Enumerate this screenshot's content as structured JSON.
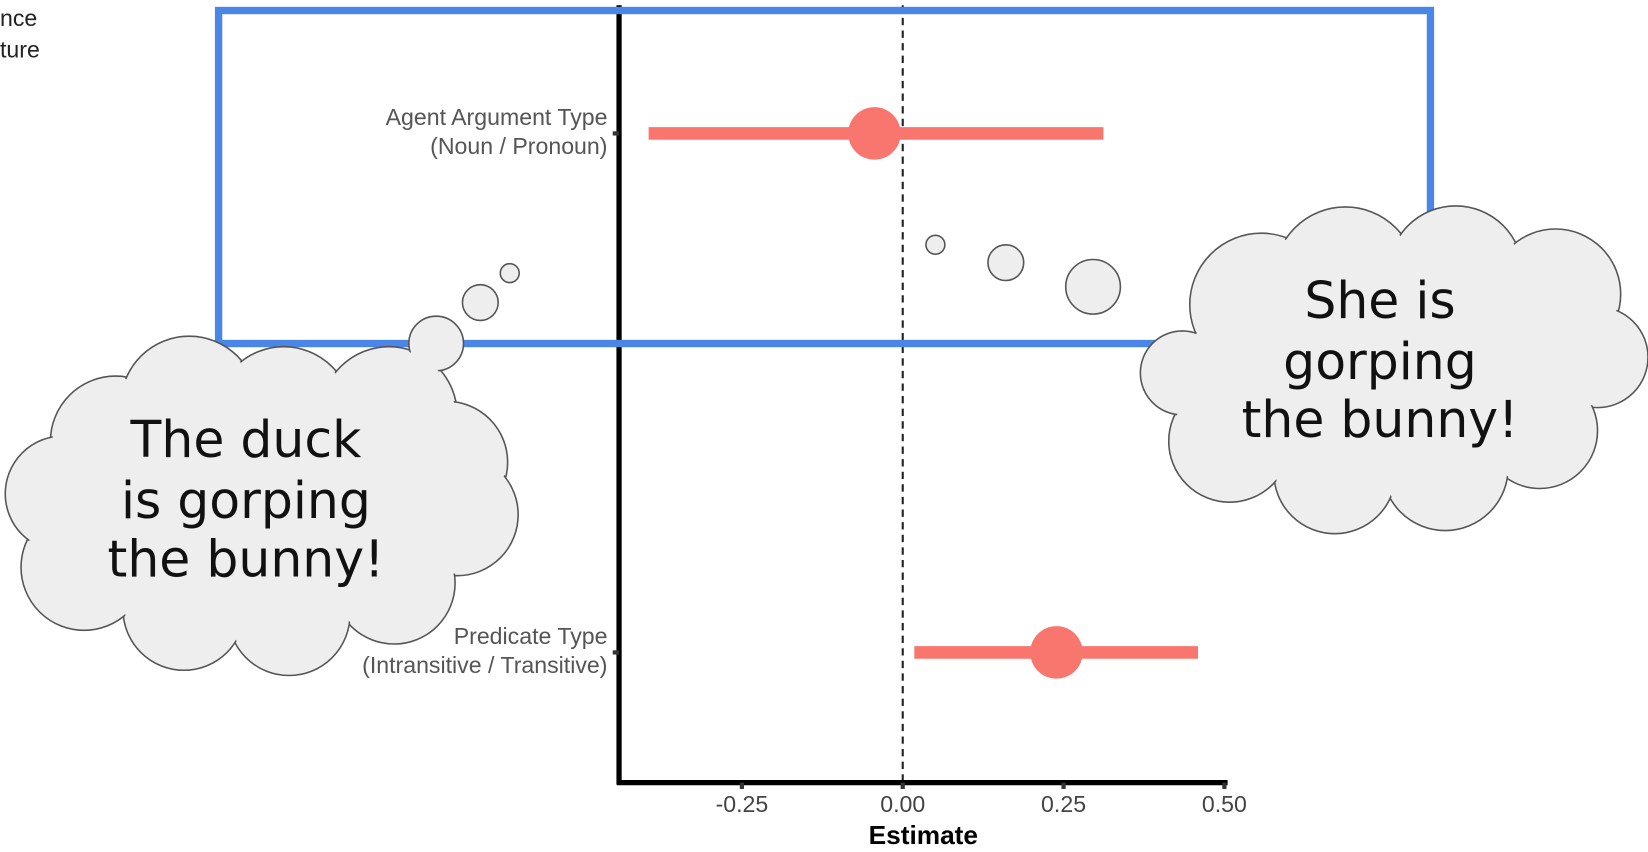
{
  "chart_data": {
    "type": "errorbar",
    "categories": [
      [
        "Agent Argument Type",
        "(Noun / Pronoun)"
      ],
      [
        "Predicate Type",
        "(Intransitive / Transitive)"
      ]
    ],
    "values": [
      -0.044,
      0.239
    ],
    "lower": [
      -0.395,
      0.018
    ],
    "upper": [
      0.312,
      0.459
    ],
    "color": "#f8766d",
    "xlabel": "Estimate",
    "xlim": [
      -0.441,
      0.505
    ],
    "xticks": [
      {
        "value": -0.25,
        "label": "-0.25"
      },
      {
        "value": 0,
        "label": "0.00"
      },
      {
        "value": 0.25,
        "label": "0.25"
      },
      {
        "value": 0.5,
        "label": "0.50"
      }
    ],
    "zero_line": true
  },
  "corner_text": [
    "nce",
    "ture"
  ],
  "bubbles": [
    [
      "The duck",
      "is gorping",
      "the bunny!"
    ],
    [
      "She is",
      "gorping",
      "the bunny!"
    ]
  ]
}
